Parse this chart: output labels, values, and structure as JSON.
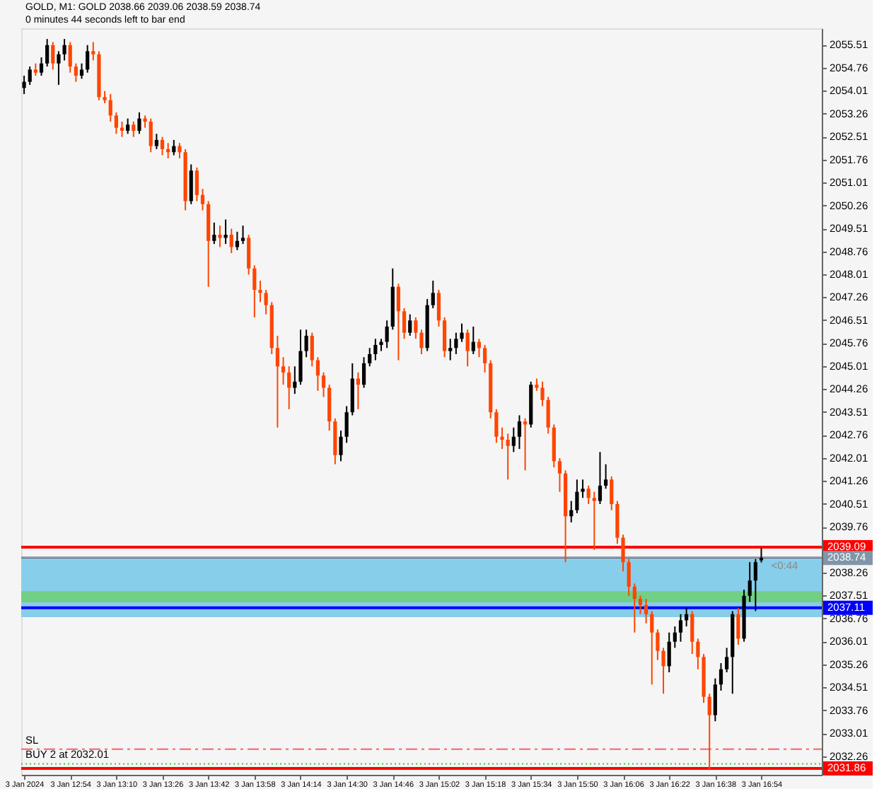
{
  "chart_data": {
    "type": "candlestick",
    "title": "GOLD, M1: GOLD 2038.66 2039.06 2038.59 2038.74",
    "subtitle": "0 minutes 44 seconds left to bar end",
    "x": [
      "2024-01-03T12:38",
      "2024-01-03T12:40",
      "2024-01-03T12:42",
      "2024-01-03T12:44",
      "2024-01-03T12:46",
      "2024-01-03T12:48",
      "2024-01-03T12:50",
      "2024-01-03T12:52",
      "2024-01-03T12:54",
      "2024-01-03T12:56",
      "2024-01-03T12:58",
      "2024-01-03T13:00",
      "2024-01-03T13:02",
      "2024-01-03T13:04",
      "2024-01-03T13:06",
      "2024-01-03T13:08",
      "2024-01-03T13:10",
      "2024-01-03T13:12",
      "2024-01-03T13:14",
      "2024-01-03T13:16",
      "2024-01-03T13:18",
      "2024-01-03T13:20",
      "2024-01-03T13:22",
      "2024-01-03T13:24",
      "2024-01-03T13:26",
      "2024-01-03T13:28",
      "2024-01-03T13:30",
      "2024-01-03T13:32",
      "2024-01-03T13:34",
      "2024-01-03T13:36",
      "2024-01-03T13:38",
      "2024-01-03T13:40",
      "2024-01-03T13:42",
      "2024-01-03T13:44",
      "2024-01-03T13:46",
      "2024-01-03T13:48",
      "2024-01-03T13:50",
      "2024-01-03T13:52",
      "2024-01-03T13:54",
      "2024-01-03T13:56",
      "2024-01-03T13:58",
      "2024-01-03T14:00",
      "2024-01-03T14:02",
      "2024-01-03T14:04",
      "2024-01-03T14:06",
      "2024-01-03T14:08",
      "2024-01-03T14:10",
      "2024-01-03T14:12",
      "2024-01-03T14:14",
      "2024-01-03T14:16",
      "2024-01-03T14:18",
      "2024-01-03T14:20",
      "2024-01-03T14:22",
      "2024-01-03T14:24",
      "2024-01-03T14:26",
      "2024-01-03T14:28",
      "2024-01-03T14:30",
      "2024-01-03T14:32",
      "2024-01-03T14:34",
      "2024-01-03T14:36",
      "2024-01-03T14:38",
      "2024-01-03T14:40",
      "2024-01-03T14:42",
      "2024-01-03T14:44",
      "2024-01-03T14:46",
      "2024-01-03T14:48",
      "2024-01-03T14:50",
      "2024-01-03T14:52",
      "2024-01-03T14:54",
      "2024-01-03T14:56",
      "2024-01-03T14:58",
      "2024-01-03T15:00",
      "2024-01-03T15:02",
      "2024-01-03T15:04",
      "2024-01-03T15:06",
      "2024-01-03T15:08",
      "2024-01-03T15:10",
      "2024-01-03T15:12",
      "2024-01-03T15:14",
      "2024-01-03T15:16",
      "2024-01-03T15:18",
      "2024-01-03T15:20",
      "2024-01-03T15:22",
      "2024-01-03T15:24",
      "2024-01-03T15:26",
      "2024-01-03T15:28",
      "2024-01-03T15:30",
      "2024-01-03T15:32",
      "2024-01-03T15:34",
      "2024-01-03T15:36",
      "2024-01-03T15:38",
      "2024-01-03T15:40",
      "2024-01-03T15:42",
      "2024-01-03T15:44",
      "2024-01-03T15:46",
      "2024-01-03T15:48",
      "2024-01-03T15:50",
      "2024-01-03T15:52",
      "2024-01-03T15:54",
      "2024-01-03T15:56",
      "2024-01-03T15:58",
      "2024-01-03T16:00",
      "2024-01-03T16:02",
      "2024-01-03T16:04",
      "2024-01-03T16:06",
      "2024-01-03T16:08",
      "2024-01-03T16:10",
      "2024-01-03T16:12",
      "2024-01-03T16:14",
      "2024-01-03T16:16",
      "2024-01-03T16:18",
      "2024-01-03T16:20",
      "2024-01-03T16:22",
      "2024-01-03T16:24",
      "2024-01-03T16:26",
      "2024-01-03T16:28",
      "2024-01-03T16:30",
      "2024-01-03T16:32",
      "2024-01-03T16:34",
      "2024-01-03T16:36",
      "2024-01-03T16:38",
      "2024-01-03T16:40",
      "2024-01-03T16:42",
      "2024-01-03T16:44",
      "2024-01-03T16:46",
      "2024-01-03T16:48",
      "2024-01-03T16:50",
      "2024-01-03T16:52",
      "2024-01-03T16:54"
    ],
    "ohlc": [
      [
        2054.1,
        2054.5,
        2053.9,
        2054.3
      ],
      [
        2054.3,
        2054.8,
        2054.2,
        2054.7
      ],
      [
        2054.7,
        2054.9,
        2054.5,
        2054.6
      ],
      [
        2054.6,
        2055.1,
        2054.5,
        2054.9
      ],
      [
        2054.9,
        2055.7,
        2054.8,
        2055.5
      ],
      [
        2055.5,
        2055.6,
        2054.7,
        2054.9
      ],
      [
        2054.9,
        2055.3,
        2054.2,
        2055.2
      ],
      [
        2055.2,
        2055.7,
        2055.0,
        2055.5
      ],
      [
        2055.5,
        2055.6,
        2054.6,
        2054.8
      ],
      [
        2054.8,
        2054.9,
        2054.3,
        2054.5
      ],
      [
        2054.5,
        2054.9,
        2054.4,
        2054.7
      ],
      [
        2054.7,
        2055.5,
        2054.6,
        2055.3
      ],
      [
        2055.3,
        2055.6,
        2055.0,
        2055.2
      ],
      [
        2055.2,
        2055.3,
        2053.7,
        2053.8
      ],
      [
        2053.8,
        2054.0,
        2053.6,
        2053.7
      ],
      [
        2053.7,
        2053.9,
        2053.0,
        2053.2
      ],
      [
        2053.2,
        2053.3,
        2052.6,
        2052.8
      ],
      [
        2052.8,
        2053.0,
        2052.5,
        2052.7
      ],
      [
        2052.7,
        2053.1,
        2052.6,
        2052.9
      ],
      [
        2052.9,
        2053.0,
        2052.5,
        2052.7
      ],
      [
        2052.7,
        2053.3,
        2052.6,
        2053.1
      ],
      [
        2053.1,
        2053.2,
        2052.8,
        2053.0
      ],
      [
        2053.0,
        2053.1,
        2052.0,
        2052.2
      ],
      [
        2052.2,
        2052.6,
        2052.1,
        2052.4
      ],
      [
        2052.4,
        2052.5,
        2051.9,
        2052.1
      ],
      [
        2052.1,
        2052.3,
        2051.8,
        2052.0
      ],
      [
        2052.0,
        2052.4,
        2051.9,
        2052.2
      ],
      [
        2052.2,
        2052.3,
        2051.8,
        2052.0
      ],
      [
        2052.0,
        2052.1,
        2050.1,
        2050.4
      ],
      [
        2050.4,
        2051.6,
        2050.3,
        2051.4
      ],
      [
        2051.4,
        2051.5,
        2050.4,
        2050.6
      ],
      [
        2050.6,
        2050.8,
        2050.1,
        2050.3
      ],
      [
        2050.3,
        2050.4,
        2047.6,
        2049.1
      ],
      [
        2049.1,
        2049.7,
        2049.0,
        2049.3
      ],
      [
        2049.3,
        2049.6,
        2048.9,
        2049.2
      ],
      [
        2049.2,
        2049.8,
        2049.0,
        2049.3
      ],
      [
        2049.3,
        2049.5,
        2048.7,
        2048.9
      ],
      [
        2048.9,
        2049.4,
        2048.8,
        2049.1
      ],
      [
        2049.1,
        2049.6,
        2049.0,
        2049.2
      ],
      [
        2049.2,
        2049.3,
        2048.0,
        2048.2
      ],
      [
        2048.2,
        2048.3,
        2046.6,
        2047.5
      ],
      [
        2047.5,
        2047.8,
        2047.1,
        2047.4
      ],
      [
        2047.4,
        2047.5,
        2046.7,
        2047.0
      ],
      [
        2047.0,
        2047.1,
        2045.4,
        2045.6
      ],
      [
        2045.6,
        2046.0,
        2043.0,
        2045.0
      ],
      [
        2045.0,
        2045.3,
        2044.4,
        2044.8
      ],
      [
        2044.8,
        2045.0,
        2043.6,
        2044.3
      ],
      [
        2044.3,
        2045.0,
        2044.1,
        2044.5
      ],
      [
        2044.5,
        2046.2,
        2044.4,
        2045.5
      ],
      [
        2045.5,
        2046.2,
        2045.3,
        2046.0
      ],
      [
        2046.0,
        2046.1,
        2045.0,
        2045.2
      ],
      [
        2045.2,
        2045.3,
        2044.2,
        2044.7
      ],
      [
        2044.7,
        2044.8,
        2044.0,
        2044.3
      ],
      [
        2044.3,
        2044.4,
        2042.9,
        2043.2
      ],
      [
        2043.2,
        2043.3,
        2041.8,
        2042.1
      ],
      [
        2042.1,
        2042.9,
        2041.9,
        2042.7
      ],
      [
        2042.7,
        2043.7,
        2042.5,
        2043.5
      ],
      [
        2043.5,
        2045.1,
        2043.4,
        2044.6
      ],
      [
        2044.6,
        2044.8,
        2043.6,
        2044.4
      ],
      [
        2044.4,
        2045.3,
        2044.3,
        2045.1
      ],
      [
        2045.1,
        2045.6,
        2045.0,
        2045.4
      ],
      [
        2045.4,
        2045.9,
        2045.2,
        2045.7
      ],
      [
        2045.7,
        2045.9,
        2045.5,
        2045.8
      ],
      [
        2045.8,
        2046.5,
        2045.6,
        2046.3
      ],
      [
        2046.3,
        2048.2,
        2046.2,
        2047.6
      ],
      [
        2047.6,
        2047.7,
        2045.2,
        2046.8
      ],
      [
        2046.8,
        2046.9,
        2045.9,
        2046.1
      ],
      [
        2046.1,
        2046.7,
        2046.0,
        2046.5
      ],
      [
        2046.5,
        2046.6,
        2045.9,
        2046.1
      ],
      [
        2046.1,
        2046.2,
        2045.4,
        2045.6
      ],
      [
        2045.6,
        2047.2,
        2045.5,
        2047.0
      ],
      [
        2047.0,
        2047.8,
        2046.9,
        2047.4
      ],
      [
        2047.4,
        2047.5,
        2046.3,
        2046.5
      ],
      [
        2046.5,
        2046.6,
        2045.3,
        2045.5
      ],
      [
        2045.5,
        2045.9,
        2045.2,
        2045.6
      ],
      [
        2045.6,
        2046.1,
        2045.4,
        2045.9
      ],
      [
        2045.9,
        2046.4,
        2045.8,
        2046.1
      ],
      [
        2046.1,
        2046.2,
        2045.0,
        2045.5
      ],
      [
        2045.5,
        2046.3,
        2045.4,
        2045.8
      ],
      [
        2045.8,
        2045.9,
        2045.3,
        2045.6
      ],
      [
        2045.6,
        2045.7,
        2044.8,
        2045.1
      ],
      [
        2045.1,
        2045.2,
        2043.3,
        2043.5
      ],
      [
        2043.5,
        2043.6,
        2042.5,
        2042.7
      ],
      [
        2042.7,
        2043.0,
        2042.3,
        2042.6
      ],
      [
        2042.6,
        2042.8,
        2041.3,
        2042.4
      ],
      [
        2042.4,
        2043.0,
        2042.2,
        2042.7
      ],
      [
        2042.7,
        2043.4,
        2042.3,
        2043.2
      ],
      [
        2043.2,
        2043.3,
        2041.6,
        2043.1
      ],
      [
        2043.1,
        2044.5,
        2043.0,
        2044.4
      ],
      [
        2044.4,
        2044.6,
        2044.2,
        2044.3
      ],
      [
        2044.3,
        2044.5,
        2043.7,
        2043.9
      ],
      [
        2043.9,
        2044.0,
        2042.8,
        2043.0
      ],
      [
        2043.0,
        2043.1,
        2041.7,
        2041.9
      ],
      [
        2041.9,
        2042.0,
        2040.9,
        2041.5
      ],
      [
        2041.5,
        2041.6,
        2038.6,
        2040.1
      ],
      [
        2040.1,
        2040.6,
        2039.9,
        2040.3
      ],
      [
        2040.3,
        2041.3,
        2040.2,
        2040.9
      ],
      [
        2040.9,
        2041.3,
        2040.7,
        2041.0
      ],
      [
        2041.0,
        2041.1,
        2040.5,
        2040.7
      ],
      [
        2040.7,
        2040.9,
        2039.0,
        2040.6
      ],
      [
        2040.6,
        2042.2,
        2040.5,
        2041.1
      ],
      [
        2041.1,
        2041.8,
        2041.0,
        2041.3
      ],
      [
        2041.3,
        2041.4,
        2040.3,
        2040.5
      ],
      [
        2040.5,
        2040.6,
        2039.2,
        2039.4
      ],
      [
        2039.4,
        2039.5,
        2038.3,
        2038.6
      ],
      [
        2038.6,
        2038.7,
        2037.5,
        2037.8
      ],
      [
        2037.8,
        2037.9,
        2036.3,
        2037.4
      ],
      [
        2037.4,
        2037.5,
        2036.9,
        2037.2
      ],
      [
        2037.2,
        2037.4,
        2036.6,
        2036.9
      ],
      [
        2036.9,
        2037.0,
        2034.6,
        2036.3
      ],
      [
        2036.3,
        2036.4,
        2035.4,
        2035.7
      ],
      [
        2035.7,
        2035.8,
        2034.3,
        2035.2
      ],
      [
        2035.2,
        2036.3,
        2035.0,
        2036.0
      ],
      [
        2036.0,
        2036.5,
        2035.8,
        2036.3
      ],
      [
        2036.3,
        2036.9,
        2036.0,
        2036.7
      ],
      [
        2036.7,
        2037.1,
        2036.5,
        2036.9
      ],
      [
        2036.9,
        2037.0,
        2035.6,
        2036.0
      ],
      [
        2036.0,
        2036.1,
        2035.1,
        2035.5
      ],
      [
        2035.5,
        2035.6,
        2034.0,
        2034.2
      ],
      [
        2034.2,
        2034.3,
        2031.8,
        2033.6
      ],
      [
        2033.6,
        2034.8,
        2033.4,
        2034.6
      ],
      [
        2034.6,
        2035.3,
        2034.4,
        2035.1
      ],
      [
        2035.1,
        2035.8,
        2035.0,
        2035.5
      ],
      [
        2035.5,
        2037.0,
        2034.3,
        2036.9
      ],
      [
        2036.9,
        2037.1,
        2035.9,
        2036.1
      ],
      [
        2036.1,
        2037.7,
        2036.0,
        2037.5
      ],
      [
        2037.5,
        2038.6,
        2037.3,
        2038.0
      ],
      [
        2038.0,
        2038.7,
        2037.0,
        2038.6
      ],
      [
        2038.66,
        2039.06,
        2038.59,
        2038.74
      ]
    ],
    "colors": [
      "#000000",
      "#000000",
      "#ff4500",
      "#000000",
      "#000000",
      "#ff4500",
      "#000000",
      "#000000",
      "#ff4500",
      "#ff4500",
      "#000000",
      "#000000",
      "#ff4500",
      "#ff4500",
      "#ff4500",
      "#ff4500",
      "#ff4500",
      "#ff4500",
      "#000000",
      "#ff4500",
      "#000000",
      "#ff4500",
      "#ff4500",
      "#000000",
      "#ff4500",
      "#ff4500",
      "#000000",
      "#ff4500",
      "#ff4500",
      "#000000",
      "#ff4500",
      "#ff4500",
      "#ff4500",
      "#000000",
      "#ff4500",
      "#000000",
      "#ff4500",
      "#000000",
      "#000000",
      "#ff4500",
      "#ff4500",
      "#ff4500",
      "#ff4500",
      "#ff4500",
      "#ff4500",
      "#ff4500",
      "#ff4500",
      "#000000",
      "#000000",
      "#000000",
      "#ff4500",
      "#ff4500",
      "#ff4500",
      "#ff4500",
      "#ff4500",
      "#000000",
      "#000000",
      "#000000",
      "#ff4500",
      "#000000",
      "#000000",
      "#000000",
      "#000000",
      "#000000",
      "#000000",
      "#ff4500",
      "#ff4500",
      "#000000",
      "#ff4500",
      "#ff4500",
      "#000000",
      "#000000",
      "#ff4500",
      "#ff4500",
      "#000000",
      "#000000",
      "#000000",
      "#ff4500",
      "#000000",
      "#ff4500",
      "#ff4500",
      "#ff4500",
      "#ff4500",
      "#ff4500",
      "#ff4500",
      "#000000",
      "#000000",
      "#ff4500",
      "#000000",
      "#ff4500",
      "#ff4500",
      "#ff4500",
      "#ff4500",
      "#ff4500",
      "#ff4500",
      "#000000",
      "#000000",
      "#000000",
      "#ff4500",
      "#ff4500",
      "#000000",
      "#000000",
      "#ff4500",
      "#ff4500",
      "#ff4500",
      "#ff4500",
      "#ff4500",
      "#ff4500",
      "#ff4500",
      "#ff4500",
      "#ff4500",
      "#ff4500",
      "#000000",
      "#000000",
      "#000000",
      "#000000",
      "#ff4500",
      "#ff4500",
      "#ff4500",
      "#ff4500",
      "#000000",
      "#000000",
      "#000000",
      "#000000",
      "#ff4500",
      "#000000",
      "#000000",
      "#000000",
      "#000000"
    ],
    "xlim": [
      "2024-01-03T12:37",
      "2024-01-03T17:15"
    ],
    "xticks": [
      {
        "value": "2024-01-03T12:38",
        "label": "3 Jan 2024"
      },
      {
        "value": "2024-01-03T12:54",
        "label": "3 Jan 12:54"
      },
      {
        "value": "2024-01-03T13:10",
        "label": "3 Jan 13:10"
      },
      {
        "value": "2024-01-03T13:26",
        "label": "3 Jan 13:26"
      },
      {
        "value": "2024-01-03T13:42",
        "label": "3 Jan 13:42"
      },
      {
        "value": "2024-01-03T13:58",
        "label": "3 Jan 13:58"
      },
      {
        "value": "2024-01-03T14:14",
        "label": "3 Jan 14:14"
      },
      {
        "value": "2024-01-03T14:30",
        "label": "3 Jan 14:30"
      },
      {
        "value": "2024-01-03T14:46",
        "label": "3 Jan 14:46"
      },
      {
        "value": "2024-01-03T15:02",
        "label": "3 Jan 15:02"
      },
      {
        "value": "2024-01-03T15:18",
        "label": "3 Jan 15:18"
      },
      {
        "value": "2024-01-03T15:34",
        "label": "3 Jan 15:34"
      },
      {
        "value": "2024-01-03T15:50",
        "label": "3 Jan 15:50"
      },
      {
        "value": "2024-01-03T16:06",
        "label": "3 Jan 16:06"
      },
      {
        "value": "2024-01-03T16:22",
        "label": "3 Jan 16:22"
      },
      {
        "value": "2024-01-03T16:38",
        "label": "3 Jan 16:38"
      },
      {
        "value": "2024-01-03T16:54",
        "label": "3 Jan 16:54"
      }
    ],
    "ylim": [
      2031.65,
      2056.05
    ],
    "yticks": [
      2032.26,
      2033.01,
      2033.76,
      2034.51,
      2035.26,
      2036.01,
      2036.76,
      2037.51,
      2038.26,
      2039.76,
      2040.51,
      2041.26,
      2042.01,
      2042.76,
      2043.51,
      2044.26,
      2045.01,
      2045.76,
      2046.51,
      2047.26,
      2048.01,
      2048.76,
      2049.51,
      2050.26,
      2051.01,
      2051.76,
      2052.51,
      2053.26,
      2054.01,
      2054.76,
      2055.51
    ],
    "bands": [
      {
        "axis": "y",
        "from": 2036.8,
        "to": 2038.68,
        "color": "#87ceeb"
      },
      {
        "axis": "y",
        "from": 2037.29,
        "to": 2037.65,
        "color": "#72cf86"
      }
    ],
    "ref_lines": [
      {
        "axis": "y",
        "value": 2039.09,
        "label": "2039.09",
        "color": "#ff0000",
        "line_style": "solid"
      },
      {
        "axis": "y",
        "value": 2038.74,
        "label": "2038.74",
        "color": "#8096a8",
        "line_style": "solid"
      },
      {
        "axis": "y",
        "value": 2037.11,
        "label": "2037.11",
        "color": "#0000ff",
        "line_style": "solid"
      },
      {
        "axis": "y",
        "value": 2032.49,
        "label": "SL",
        "color": "#ff6060",
        "line_style": "dashed"
      },
      {
        "axis": "y",
        "value": 2032.01,
        "label": "BUY 2 at 2032.01",
        "color": "#32cd32",
        "line_style": "dotted"
      },
      {
        "axis": "y",
        "value": 2031.86,
        "label": "2031.86",
        "color": "#ff0000",
        "line_style": "solid"
      }
    ],
    "annotations": [
      {
        "text": "<0:44",
        "x": "2024-01-03T16:54",
        "y": 2038.74
      }
    ],
    "grid": false
  }
}
